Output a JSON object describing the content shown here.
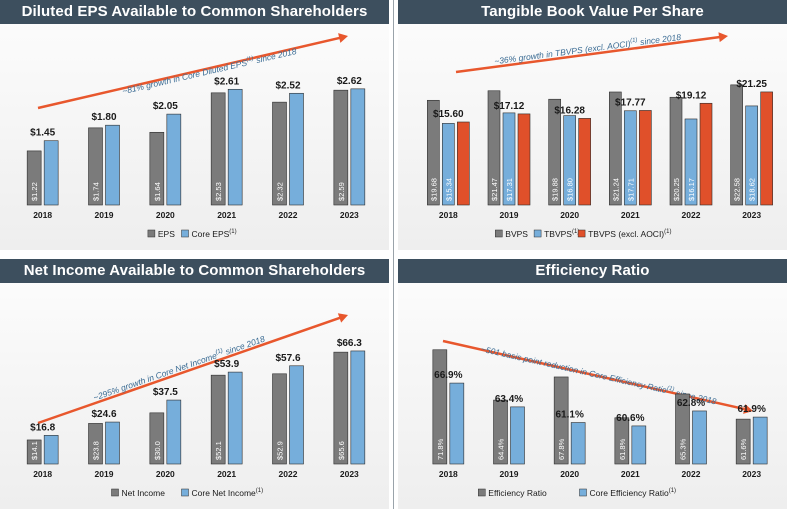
{
  "colors": {
    "header_bg": "#3d4f5e",
    "gray_bar": "#7b7b7b",
    "blue_bar": "#76aedb",
    "orange_bar": "#e0502a",
    "arrow": "#e8572d",
    "annotation": "#3a6b93"
  },
  "panels": [
    {
      "title": "Diluted EPS Available to Common Shareholders",
      "annotation": "~81% growth in Core Diluted EPS(1) since 2018",
      "chart_data": {
        "type": "bar",
        "categories": [
          "2018",
          "2019",
          "2020",
          "2021",
          "2022",
          "2023"
        ],
        "series": [
          {
            "name": "EPS",
            "color": "gray",
            "values": [
              1.22,
              1.74,
              1.64,
              2.53,
              2.32,
              2.59
            ],
            "bar_labels": [
              "$1.22",
              "$1.74",
              "$1.64",
              "$2.53",
              "$2.32",
              "$2.59"
            ]
          },
          {
            "name": "Core EPS(1)",
            "color": "blue",
            "values": [
              1.45,
              1.8,
              2.05,
              2.61,
              2.52,
              2.62
            ],
            "top_labels": [
              "$1.45",
              "$1.80",
              "$2.05",
              "$2.61",
              "$2.52",
              "$2.62"
            ]
          }
        ],
        "ymax": 3.0
      },
      "legend": [
        "EPS",
        "Core EPS(1)"
      ]
    },
    {
      "title": "Tangible Book Value Per Share",
      "annotation": "~36% growth in TBVPS (excl. AOCI)(1) since 2018",
      "chart_data": {
        "type": "bar",
        "categories": [
          "2018",
          "2019",
          "2020",
          "2021",
          "2022",
          "2023"
        ],
        "series": [
          {
            "name": "BVPS",
            "color": "gray",
            "values": [
              19.68,
              21.47,
              19.88,
              21.24,
              20.25,
              22.58
            ],
            "bar_labels": [
              "$19.68",
              "$21.47",
              "$19.88",
              "$21.24",
              "$20.25",
              "$22.58"
            ]
          },
          {
            "name": "TBVPS(1)",
            "color": "blue",
            "values": [
              15.34,
              17.31,
              16.8,
              17.71,
              16.17,
              18.62
            ],
            "bar_labels": [
              "$15.34",
              "$17.31",
              "$16.80",
              "$17.71",
              "$16.17",
              "$18.62"
            ]
          },
          {
            "name": "TBVPS (excl. AOCI)(1)",
            "color": "orange",
            "values": [
              15.6,
              17.12,
              16.28,
              17.77,
              19.12,
              21.25
            ],
            "top_labels": [
              "$15.60",
              "$17.12",
              "$16.28",
              "$17.77",
              "$19.12",
              "$21.25"
            ]
          }
        ],
        "ymax": 26.5
      },
      "legend": [
        "BVPS",
        "TBVPS(1)",
        "TBVPS (excl. AOCI)(1)"
      ]
    },
    {
      "title": "Net Income Available to Common Shareholders",
      "annotation": "~295% growth in Core Net Income(1) since 2018",
      "chart_data": {
        "type": "bar",
        "categories": [
          "2018",
          "2019",
          "2020",
          "2021",
          "2022",
          "2023"
        ],
        "series": [
          {
            "name": "Net Income",
            "color": "gray",
            "values": [
              14.1,
              23.8,
              30.0,
              52.1,
              52.9,
              65.6
            ],
            "bar_labels": [
              "$14.1",
              "$23.8",
              "$30.0",
              "$52.1",
              "$52.9",
              "$65.6"
            ]
          },
          {
            "name": "Core Net Income(1)",
            "color": "blue",
            "values": [
              16.8,
              24.6,
              37.5,
              53.9,
              57.6,
              66.3
            ],
            "top_labels": [
              "$16.8",
              "$24.6",
              "$37.5",
              "$53.9",
              "$57.6",
              "$66.3"
            ]
          }
        ],
        "ymax": 78
      },
      "legend": [
        "Net Income",
        "Core Net Income(1)"
      ]
    },
    {
      "title": "Efficiency Ratio",
      "annotation": "~501 basis point reduction in Core Efficiency Ratio(1) since 2018",
      "chart_data": {
        "type": "bar",
        "categories": [
          "2018",
          "2019",
          "2020",
          "2021",
          "2022",
          "2023"
        ],
        "series": [
          {
            "name": "Efficiency Ratio",
            "color": "gray",
            "values": [
              71.8,
              64.4,
              67.8,
              61.8,
              65.3,
              61.6
            ],
            "bar_labels": [
              "71.8%",
              "64.4%",
              "67.8%",
              "61.8%",
              "65.3%",
              "61.6%"
            ]
          },
          {
            "name": "Core Efficiency Ratio(1)",
            "color": "blue",
            "values": [
              66.9,
              63.4,
              61.1,
              60.6,
              62.8,
              61.9
            ],
            "top_labels": [
              "66.9%",
              "63.4%",
              "61.1%",
              "60.6%",
              "62.8%",
              "61.9%"
            ]
          }
        ],
        "ymin": 55,
        "ymax": 75
      },
      "legend": [
        "Efficiency Ratio",
        "Core Efficiency Ratio(1)"
      ]
    }
  ]
}
